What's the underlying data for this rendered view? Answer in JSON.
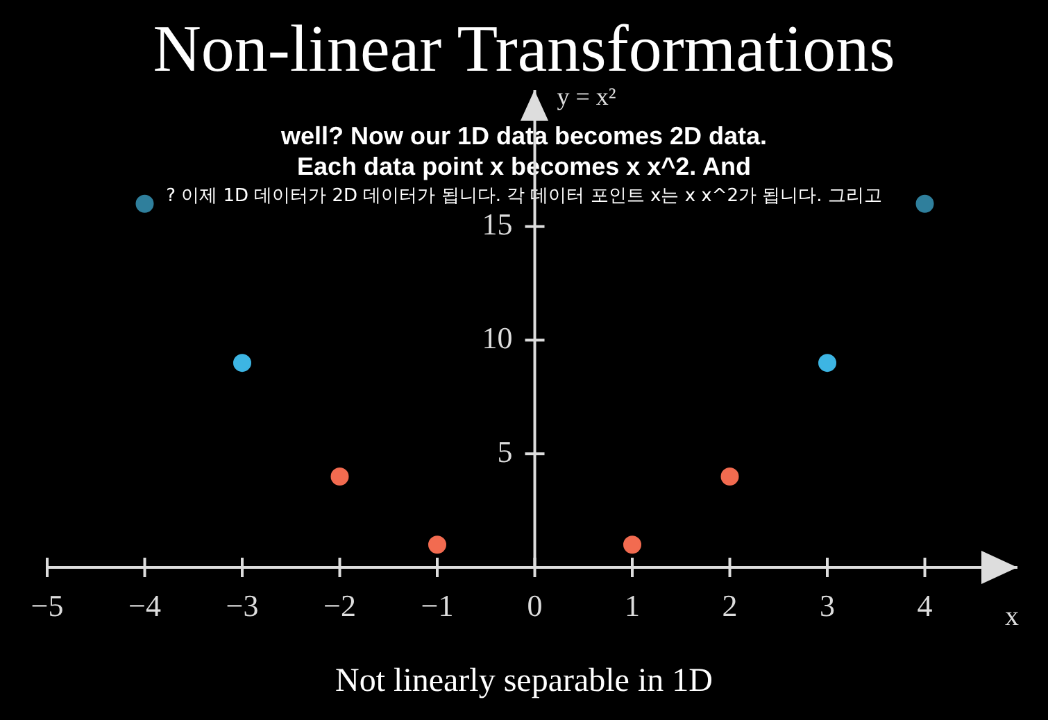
{
  "chart_data": {
    "type": "scatter",
    "title": "Non-linear Transformations",
    "xlabel": "x",
    "ylabel": "y = x²",
    "annotations": [
      "Not linearly separable in 1D",
      "well? Now our 1D data becomes 2D data.",
      "Each data point x becomes x x^2. And",
      "? 이제 1D 데이터가 2D 데이터가 됩니다. 각 데이터 포인트 x는 x x^2가 됩니다. 그리고"
    ],
    "x": [
      -4,
      -3,
      -2,
      -1,
      1,
      2,
      3,
      4
    ],
    "series": [
      {
        "values": [
          16,
          9,
          4,
          1,
          1,
          4,
          9,
          16
        ],
        "colors": [
          "#2f7f9c",
          "#3db5e3",
          "#f26b50",
          "#f26b50",
          "#f26b50",
          "#f26b50",
          "#3db5e3",
          "#2f7f9c"
        ]
      }
    ],
    "xlim": [
      -5,
      4.95
    ],
    "ylim": [
      0,
      21
    ],
    "xticks": [
      {
        "value": -5,
        "label": "−5"
      },
      {
        "value": -4,
        "label": "−4"
      },
      {
        "value": -3,
        "label": "−3"
      },
      {
        "value": -2,
        "label": "−2"
      },
      {
        "value": -1,
        "label": "−1"
      },
      0,
      1,
      2,
      3,
      4
    ],
    "yticks": [
      5,
      10,
      15
    ],
    "grid": false,
    "legend": false,
    "marker": "circle"
  }
}
